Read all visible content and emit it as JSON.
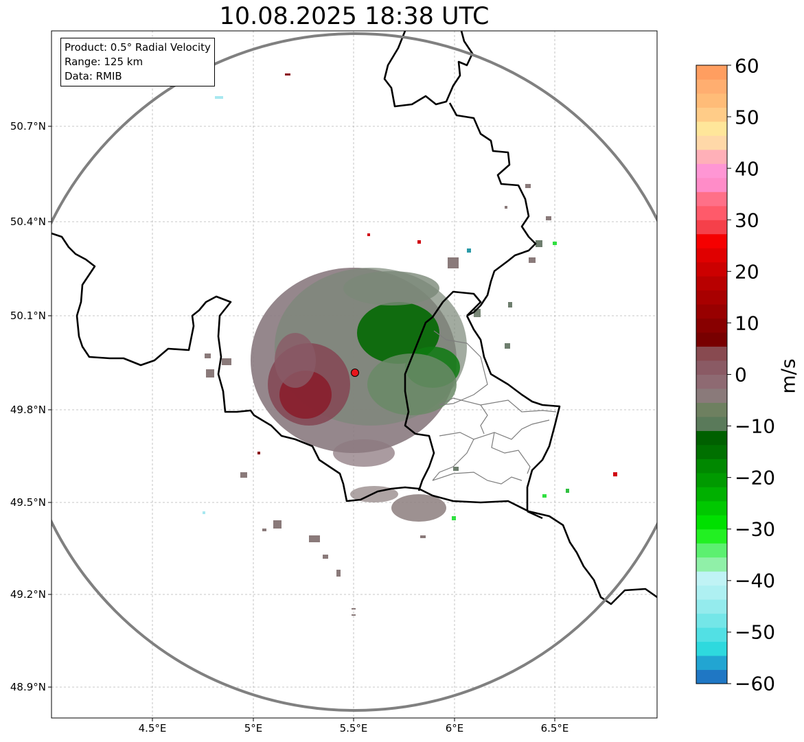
{
  "title": "10.08.2025 18:38 UTC",
  "info": {
    "product": "Product: 0.5° Radial Velocity",
    "range": "Range: 125 km",
    "data": "Data: RMIB"
  },
  "axes": {
    "lat_ticks": [
      "50.7°N",
      "50.4°N",
      "50.1°N",
      "49.8°N",
      "49.5°N",
      "49.2°N",
      "48.9°N"
    ],
    "lon_ticks": [
      "4.5°E",
      "5°E",
      "5.5°E",
      "6°E",
      "6.5°E"
    ]
  },
  "colorbar": {
    "unit": "m/s",
    "ticks": [
      "60",
      "50",
      "40",
      "30",
      "20",
      "10",
      "0",
      "−10",
      "−20",
      "−30",
      "−40",
      "−50",
      "−60"
    ],
    "range": [
      -60,
      60
    ],
    "colors": [
      "#1f77c4",
      "#22a5d2",
      "#2ed9de",
      "#52e0e4",
      "#74e6e8",
      "#94ebed",
      "#aef0f2",
      "#c0f3f5",
      "#90f0a8",
      "#5cf070",
      "#22f022",
      "#00e000",
      "#00c800",
      "#00b000",
      "#009a00",
      "#008800",
      "#007000",
      "#006000",
      "#5a7a5a",
      "#6e8060",
      "#8a7a7a",
      "#8e6a72",
      "#8a5a64",
      "#884a50",
      "#780000",
      "#880000",
      "#980000",
      "#a80000",
      "#b80000",
      "#cc0000",
      "#e00000",
      "#f50000",
      "#f5404a",
      "#ff5a6a",
      "#ff7088",
      "#ff8cc8",
      "#ff96d4",
      "#ffb0b8",
      "#ffd8a8",
      "#ffe69a",
      "#ffcc88",
      "#ffbc78",
      "#ffae70",
      "#ff9e60"
    ]
  },
  "map": {
    "radar_site": {
      "lat": 49.914,
      "lon": 5.505,
      "color": "#e8161c"
    },
    "range_ring_color": "#808080"
  }
}
